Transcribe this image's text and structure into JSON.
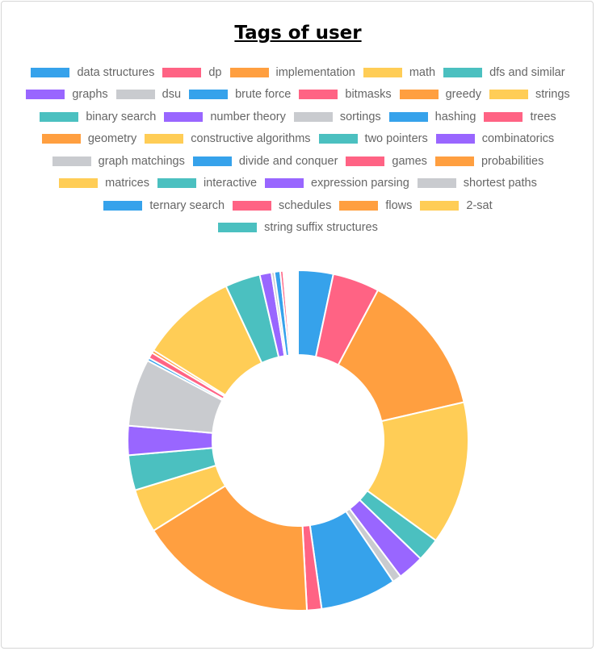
{
  "title": "Tags of user",
  "chart_data": {
    "type": "doughnut",
    "title": "Tags of user",
    "legend_position": "top",
    "palette": [
      "#36a2eb",
      "#ff6384",
      "#ff9f40",
      "#ffcd56",
      "#4bc0c0",
      "#9966ff",
      "#c9cbcf"
    ],
    "categories": [
      "data structures",
      "dp",
      "implementation",
      "math",
      "dfs and similar",
      "graphs",
      "dsu",
      "brute force",
      "bitmasks",
      "greedy",
      "strings",
      "binary search",
      "number theory",
      "sortings",
      "hashing",
      "trees",
      "geometry",
      "constructive algorithms",
      "two pointers",
      "combinatorics",
      "graph matchings",
      "divide and conquer",
      "games",
      "probabilities",
      "matrices",
      "interactive",
      "expression parsing",
      "shortest paths",
      "ternary search",
      "schedules",
      "flows",
      "2-sat",
      "string suffix structures"
    ],
    "values": [
      12,
      16,
      49,
      49,
      8,
      9,
      3,
      26,
      5,
      61,
      15,
      12,
      10,
      23,
      1,
      2,
      1,
      33,
      12,
      4,
      1,
      2,
      1,
      0.5,
      0.5,
      0.5,
      0.5,
      0.5,
      0.5,
      0.5,
      0.5,
      0.5,
      0.5
    ]
  }
}
